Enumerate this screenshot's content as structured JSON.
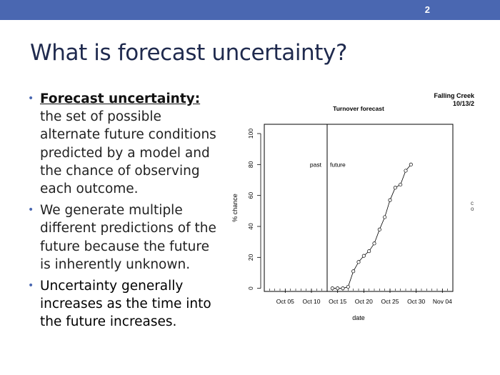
{
  "slide": {
    "number": "2",
    "title": "What is forecast uncertainty?"
  },
  "bullets": [
    {
      "term": "Forecast uncertainty:",
      "text": " the set of possible alternate future conditions predicted by a model and the chance of observing each outcome."
    },
    {
      "text": "We generate multiple different predictions of the future because the future is inherently unknown."
    },
    {
      "text": "Uncertainty generally increases as the time into the future increases."
    }
  ],
  "colors": {
    "topbar": "#4a67b1",
    "title": "#1f2a4e",
    "bullet_marker": "#4a67b1"
  },
  "chart_corner_label": {
    "line1": "Falling Creek",
    "line2": "10/13/2"
  },
  "side_glyphs": [
    "c",
    "o"
  ],
  "chart_data": {
    "type": "line",
    "title": "Turnover forecast",
    "xlabel": "date",
    "ylabel": "% chance",
    "x_type": "date",
    "xlim": [
      "2020-10-01",
      "2020-11-06"
    ],
    "ylim": [
      -2,
      106
    ],
    "xticks": [
      "Oct 05",
      "Oct 10",
      "Oct 15",
      "Oct 20",
      "Oct 25",
      "Oct 30",
      "Nov 04"
    ],
    "xtick_dates": [
      "2020-10-05",
      "2020-10-10",
      "2020-10-15",
      "2020-10-20",
      "2020-10-25",
      "2020-10-30",
      "2020-11-04"
    ],
    "yticks": [
      0,
      20,
      40,
      60,
      80,
      100
    ],
    "divider_date": "2020-10-13",
    "annotations": {
      "past": "past",
      "future": "future"
    },
    "series": [
      {
        "x": [
          "2020-10-14",
          "2020-10-15",
          "2020-10-16",
          "2020-10-17",
          "2020-10-18",
          "2020-10-19",
          "2020-10-20",
          "2020-10-21",
          "2020-10-22",
          "2020-10-23",
          "2020-10-24",
          "2020-10-25",
          "2020-10-26",
          "2020-10-27",
          "2020-10-28",
          "2020-10-29"
        ],
        "y": [
          0,
          0,
          0,
          1,
          11,
          17,
          21,
          24,
          29,
          38,
          46,
          57,
          65,
          67,
          76,
          80
        ]
      }
    ],
    "marker": "open-circle",
    "grid": false
  }
}
